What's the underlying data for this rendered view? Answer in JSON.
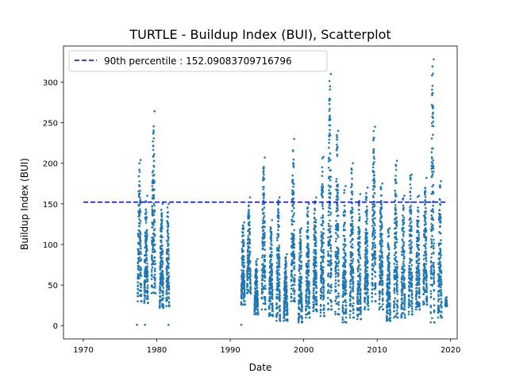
{
  "chart_data": {
    "type": "scatter",
    "title": "TURTLE - Buildup Index (BUI), Scatterplot",
    "xlabel": "Date",
    "ylabel": "Buildup Index (BUI)",
    "xlim": [
      1967.3,
      2020.9
    ],
    "ylim": [
      -16.4,
      344.4
    ],
    "xticks": [
      1970,
      1980,
      1990,
      2000,
      2010,
      2020
    ],
    "yticks": [
      0,
      50,
      100,
      150,
      200,
      250,
      300
    ],
    "grid": false,
    "legend_position": "top-left",
    "reference_line": {
      "label": "90th percentile : 152.09083709716796",
      "y": 152.09083709716796,
      "x_range": [
        1970,
        2019.5
      ],
      "color": "#0000cc",
      "style": "dashed"
    },
    "series": [
      {
        "color": "#1f77b4",
        "marker": "dot",
        "seasons": [
          {
            "start": 1977.4,
            "end": 1977.9,
            "min": 30,
            "max": 204
          },
          {
            "start": 1978.3,
            "end": 1978.8,
            "min": 28,
            "max": 160
          },
          {
            "start": 1979.3,
            "end": 1979.8,
            "min": 40,
            "max": 264
          },
          {
            "start": 1980.4,
            "end": 1980.9,
            "min": 22,
            "max": 150
          },
          {
            "start": 1981.3,
            "end": 1981.7,
            "min": 24,
            "max": 150
          },
          {
            "start": 1991.5,
            "end": 1992.0,
            "min": 26,
            "max": 127
          },
          {
            "start": 1992.3,
            "end": 1992.8,
            "min": 40,
            "max": 158
          },
          {
            "start": 1993.3,
            "end": 1993.8,
            "min": 14,
            "max": 82
          },
          {
            "start": 1994.3,
            "end": 1994.8,
            "min": 20,
            "max": 207
          },
          {
            "start": 1995.3,
            "end": 1995.8,
            "min": 12,
            "max": 130
          },
          {
            "start": 1996.3,
            "end": 1996.8,
            "min": 6,
            "max": 158
          },
          {
            "start": 1997.3,
            "end": 1997.8,
            "min": 6,
            "max": 88
          },
          {
            "start": 1998.3,
            "end": 1998.8,
            "min": 30,
            "max": 230
          },
          {
            "start": 1999.3,
            "end": 1999.8,
            "min": 4,
            "max": 120
          },
          {
            "start": 2000.3,
            "end": 2000.8,
            "min": 10,
            "max": 150
          },
          {
            "start": 2001.3,
            "end": 2001.8,
            "min": 18,
            "max": 158
          },
          {
            "start": 2002.3,
            "end": 2002.8,
            "min": 12,
            "max": 208
          },
          {
            "start": 2003.3,
            "end": 2003.8,
            "min": 20,
            "max": 310
          },
          {
            "start": 2004.3,
            "end": 2004.8,
            "min": 14,
            "max": 240
          },
          {
            "start": 2005.3,
            "end": 2005.8,
            "min": 4,
            "max": 172
          },
          {
            "start": 2006.3,
            "end": 2006.8,
            "min": 10,
            "max": 200
          },
          {
            "start": 2007.3,
            "end": 2007.8,
            "min": 8,
            "max": 162
          },
          {
            "start": 2008.3,
            "end": 2008.8,
            "min": 20,
            "max": 170
          },
          {
            "start": 2009.3,
            "end": 2009.8,
            "min": 30,
            "max": 245
          },
          {
            "start": 2010.3,
            "end": 2010.8,
            "min": 20,
            "max": 175
          },
          {
            "start": 2011.3,
            "end": 2011.8,
            "min": 6,
            "max": 120
          },
          {
            "start": 2012.3,
            "end": 2012.8,
            "min": 10,
            "max": 203
          },
          {
            "start": 2013.3,
            "end": 2013.8,
            "min": 10,
            "max": 160
          },
          {
            "start": 2014.3,
            "end": 2014.8,
            "min": 14,
            "max": 186
          },
          {
            "start": 2015.3,
            "end": 2015.8,
            "min": 20,
            "max": 160
          },
          {
            "start": 2016.3,
            "end": 2016.8,
            "min": 26,
            "max": 182
          },
          {
            "start": 2017.3,
            "end": 2017.8,
            "min": 4,
            "max": 328
          },
          {
            "start": 2018.3,
            "end": 2018.8,
            "min": 10,
            "max": 178
          },
          {
            "start": 2019.3,
            "end": 2019.5,
            "min": 24,
            "max": 35
          }
        ],
        "isolated_points": [
          {
            "x": 1977.3,
            "y": 1
          },
          {
            "x": 1978.4,
            "y": 1
          },
          {
            "x": 1981.6,
            "y": 1
          },
          {
            "x": 1991.5,
            "y": 1
          }
        ]
      }
    ]
  }
}
